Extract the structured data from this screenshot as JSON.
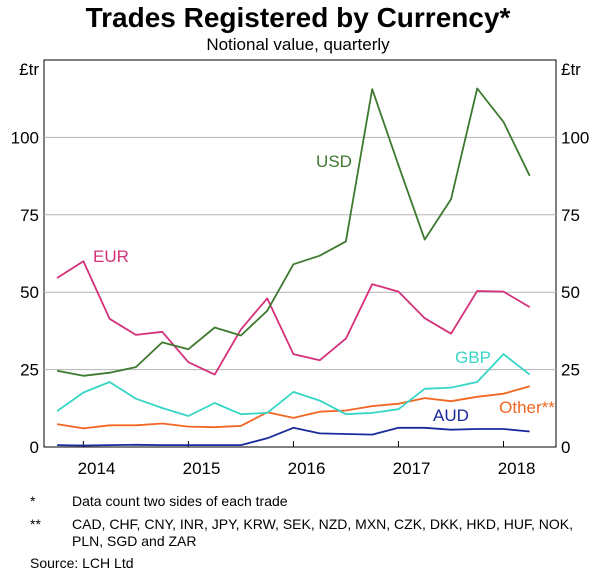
{
  "chart_data": {
    "type": "line",
    "title": "Trades Registered by Currency*",
    "subtitle": "Notional value, quarterly",
    "ylabel_left": "£tr",
    "ylabel_right": "£tr",
    "ylim": [
      0,
      125
    ],
    "yticks": [
      0,
      25,
      50,
      75,
      100
    ],
    "xlim": [
      2013.625,
      2018.5
    ],
    "xticks": [
      {
        "label": "2014",
        "value": 2014.125
      },
      {
        "label": "2015",
        "value": 2015.125
      },
      {
        "label": "2016",
        "value": 2016.125
      },
      {
        "label": "2017",
        "value": 2017.125
      },
      {
        "label": "2018",
        "value": 2018.125
      }
    ],
    "x": [
      2013.75,
      2014.0,
      2014.25,
      2014.5,
      2014.75,
      2015.0,
      2015.25,
      2015.5,
      2015.75,
      2016.0,
      2016.25,
      2016.5,
      2016.75,
      2017.0,
      2017.25,
      2017.5,
      2017.75,
      2018.0,
      2018.25
    ],
    "series": [
      {
        "name": "USD",
        "label": "USD",
        "color": "#3d7a2f",
        "values": [
          24.6,
          23.0,
          24.0,
          25.8,
          33.8,
          31.6,
          38.6,
          36.0,
          44.0,
          59.0,
          61.8,
          66.4,
          115.6,
          91.0,
          67.0,
          80.0,
          115.8,
          105.0,
          87.6
        ]
      },
      {
        "name": "EUR",
        "label": "EUR",
        "color": "#d4317a",
        "values": [
          54.6,
          60.0,
          41.4,
          36.2,
          37.2,
          27.4,
          23.4,
          38.0,
          48.0,
          30.0,
          28.0,
          35.0,
          52.6,
          50.2,
          41.6,
          36.6,
          50.4,
          50.2,
          45.2
        ]
      },
      {
        "name": "GBP",
        "label": "GBP",
        "color": "#36d6c6",
        "values": [
          11.6,
          17.6,
          21.0,
          15.6,
          12.6,
          10.0,
          14.2,
          10.6,
          11.0,
          17.8,
          15.0,
          10.6,
          11.0,
          12.2,
          18.8,
          19.2,
          21.0,
          30.0,
          23.4
        ]
      },
      {
        "name": "Other",
        "label": "Other**",
        "color": "#f26522",
        "values": [
          7.4,
          6.0,
          7.0,
          7.0,
          7.6,
          6.6,
          6.4,
          6.8,
          11.2,
          9.4,
          11.4,
          11.8,
          13.2,
          14.0,
          15.8,
          14.8,
          16.2,
          17.2,
          19.6
        ]
      },
      {
        "name": "AUD",
        "label": "AUD",
        "color": "#1a2a9c",
        "values": [
          0.6,
          0.5,
          0.6,
          0.7,
          0.6,
          0.6,
          0.6,
          0.6,
          2.8,
          6.2,
          4.4,
          4.2,
          4.0,
          6.2,
          6.2,
          5.6,
          5.8,
          5.8,
          5.0
        ]
      }
    ]
  },
  "notes": [
    {
      "mark": "*",
      "text": "Data count two sides of each trade"
    },
    {
      "mark": "**",
      "text": "CAD, CHF, CNY, INR, JPY, KRW, SEK, NZD, MXN, CZK, DKK, HKD, HUF, NOK, PLN, SGD and ZAR"
    }
  ],
  "source": "Source:   LCH Ltd"
}
